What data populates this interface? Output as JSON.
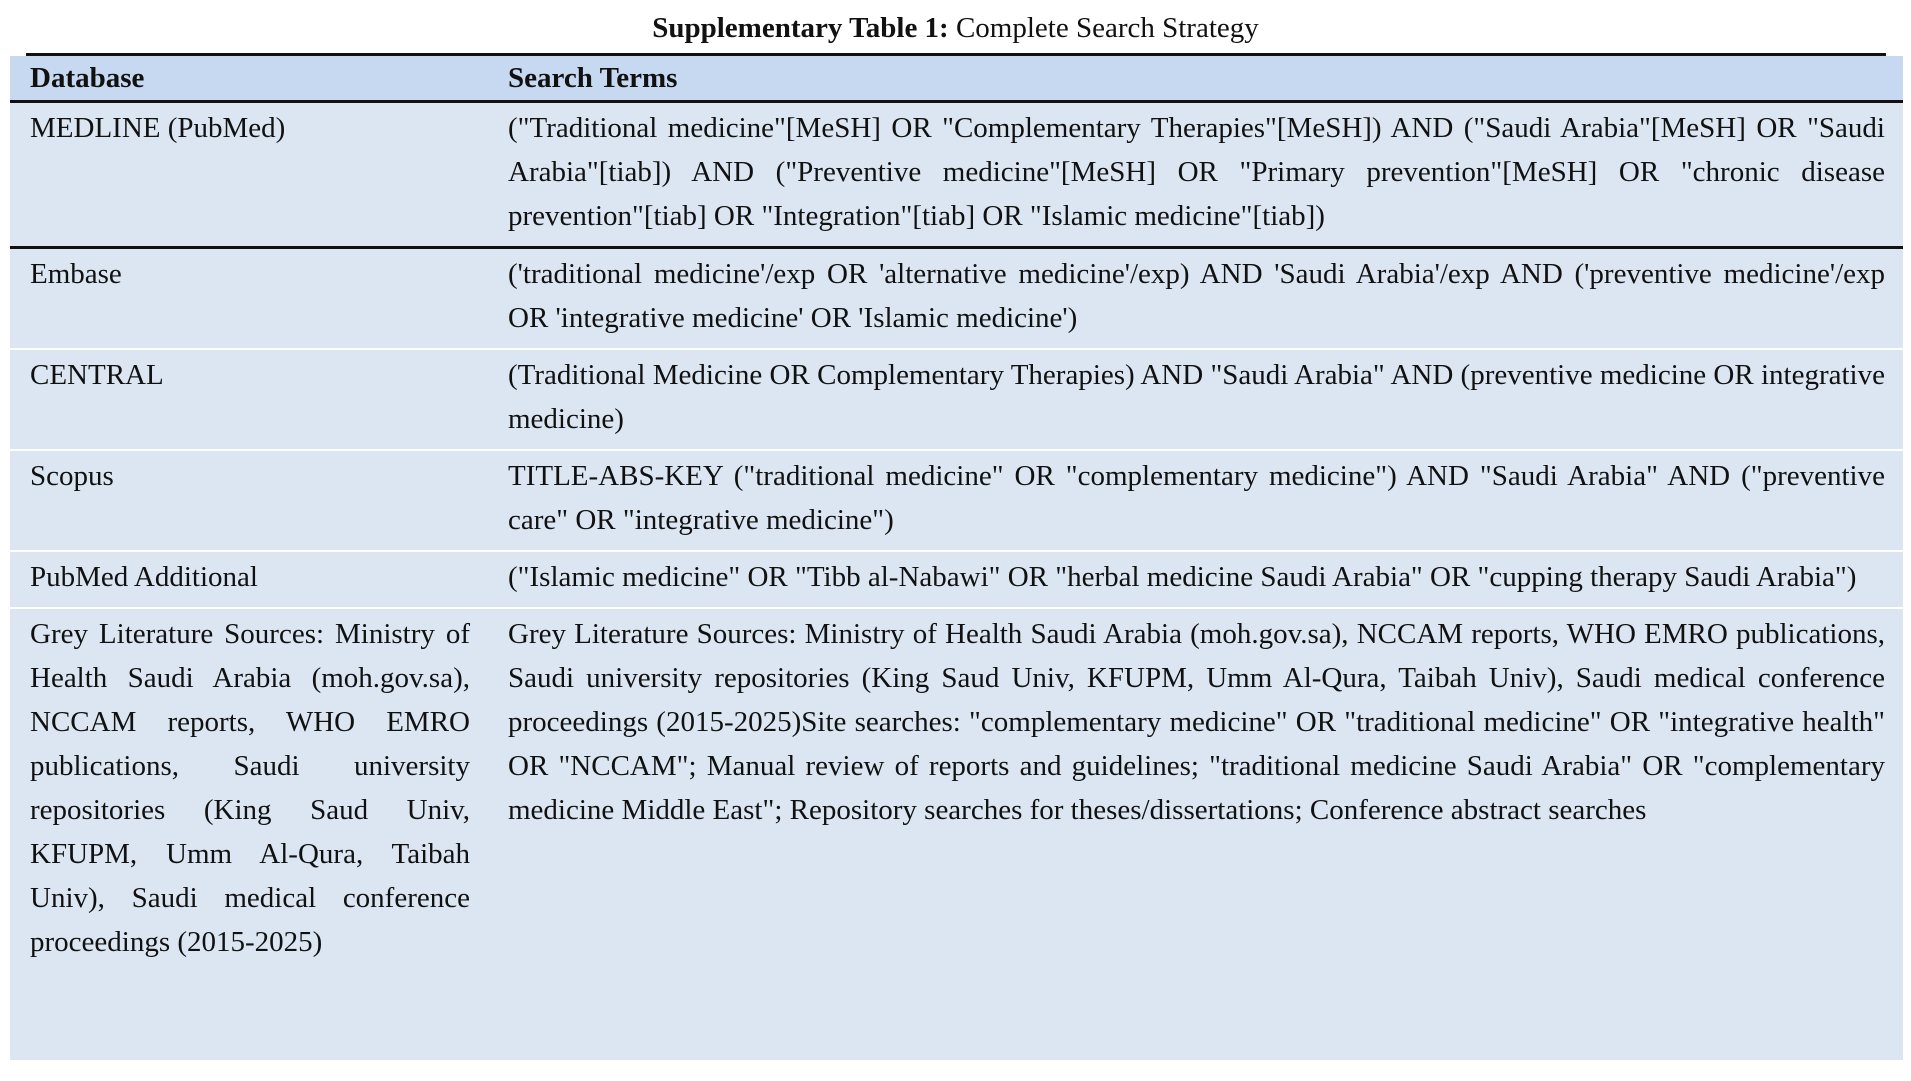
{
  "title": {
    "label": "Supplementary Table 1:",
    "text": "Complete Search Strategy"
  },
  "table": {
    "headers": [
      "Database",
      "Search Terms"
    ],
    "rows": [
      {
        "database": "MEDLINE (PubMed)",
        "terms": "(\"Traditional medicine\"[MeSH] OR \"Complementary Therapies\"[MeSH]) AND (\"Saudi Arabia\"[MeSH] OR \"Saudi Arabia\"[tiab]) AND (\"Preventive medicine\"[MeSH] OR \"Primary prevention\"[MeSH] OR \"chronic disease prevention\"[tiab] OR \"Integration\"[tiab] OR \"Islamic medicine\"[tiab])"
      },
      {
        "database": "Embase",
        "terms": "('traditional medicine'/exp OR 'alternative medicine'/exp) AND 'Saudi Arabia'/exp AND ('preventive medicine'/exp OR 'integrative medicine' OR 'Islamic medicine')"
      },
      {
        "database": "CENTRAL",
        "terms": "(Traditional Medicine OR Complementary Therapies) AND \"Saudi Arabia\" AND (preventive medicine OR integrative medicine)"
      },
      {
        "database": "Scopus",
        "terms": "TITLE-ABS-KEY (\"traditional medicine\" OR \"complementary medicine\") AND \"Saudi Arabia\" AND (\"preventive care\" OR \"integrative medicine\")"
      },
      {
        "database": "PubMed Additional",
        "terms": "(\"Islamic medicine\" OR \"Tibb al-Nabawi\" OR \"herbal medicine Saudi Arabia\" OR \"cupping therapy Saudi Arabia\")"
      },
      {
        "database": "Grey Literature Sources: Ministry of Health Saudi Arabia (moh.gov.sa), NCCAM reports, WHO EMRO publications, Saudi university repositories (King Saud Univ, KFUPM, Umm Al-Qura, Taibah Univ), Saudi medical conference proceedings (2015-2025)",
        "terms": "Grey Literature Sources: Ministry of Health Saudi Arabia (moh.gov.sa), NCCAM reports, WHO EMRO publications, Saudi university repositories (King Saud Univ, KFUPM, Umm Al-Qura, Taibah Univ), Saudi medical conference proceedings (2015-2025)Site searches: \"complementary medicine\" OR \"traditional medicine\" OR \"integrative health\" OR \"NCCAM\"; Manual review of reports and guidelines; \"traditional medicine Saudi Arabia\" OR \"complementary medicine Middle East\"; Repository searches for theses/dissertations; Conference abstract searches"
      }
    ]
  }
}
